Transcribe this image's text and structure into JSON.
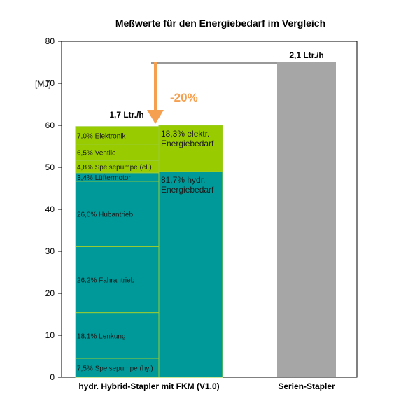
{
  "chart_data": {
    "type": "bar",
    "title": "Meßwerte für den Energiebedarf im Vergleich",
    "ylabel": "[MJ]",
    "ylim": [
      0,
      80
    ],
    "yticks": [
      0,
      10,
      20,
      30,
      40,
      50,
      60,
      70,
      80
    ],
    "grid": false,
    "categories": [
      "hydr. Hybrid-Stapler mit FKM (V1.0)",
      "Serien-Stapler"
    ],
    "consumption_labels": [
      "1,7 Ltr./h",
      "2,1 Ltr./h"
    ],
    "totals": [
      60,
      75
    ],
    "reduction_label": "-20%",
    "breakdown": [
      {
        "label": "7,5% Speisepumpe (hy.)",
        "value": 4.5
      },
      {
        "label": "18,1% Lenkung",
        "value": 10.9
      },
      {
        "label": "26,2% Fahrantrieb",
        "value": 15.7
      },
      {
        "label": "26,0% Hubantrieb",
        "value": 15.6
      },
      {
        "label": "3,4% Lüftermotor",
        "value": 2.0
      },
      {
        "label": "4,8% Speisepumpe (el.)",
        "value": 2.9
      },
      {
        "label": "6,5% Ventile",
        "value": 3.9
      },
      {
        "label": "7,0% Elektronik",
        "value": 4.2
      }
    ],
    "shares": [
      {
        "label": "81,7% hydr. Energiebedarf",
        "value": 49.0
      },
      {
        "label": "18,3% elektr. Energiebedarf",
        "value": 11.0
      }
    ],
    "colors": {
      "hydraulic": "#009999",
      "electric": "#99cc00",
      "serial": "#a6a6a6",
      "segment_border": "#99cc33",
      "arrow": "#f5a050",
      "bracket": "#999999"
    }
  }
}
